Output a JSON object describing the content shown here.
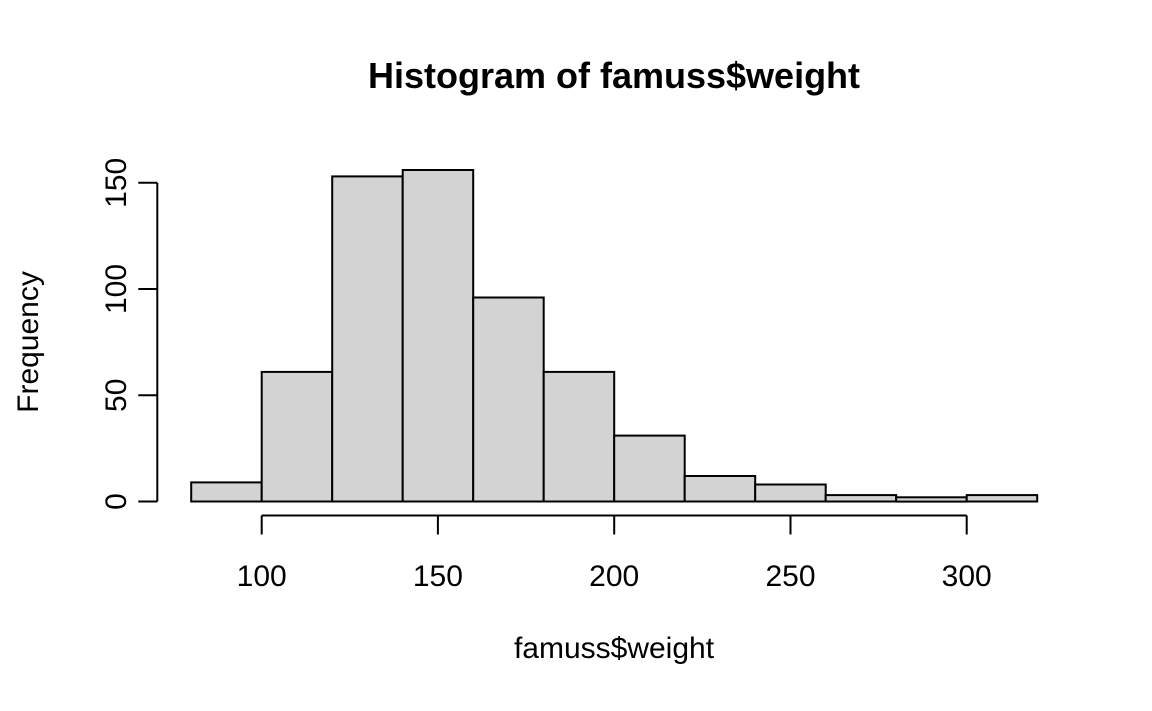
{
  "figure": {
    "background": "#ffffff"
  },
  "chart_data": {
    "type": "bar",
    "subtype": "histogram",
    "title": "Histogram of famuss$weight",
    "xlabel": "famuss$weight",
    "ylabel": "Frequency",
    "bin_edges": [
      80,
      100,
      120,
      140,
      160,
      180,
      200,
      220,
      240,
      260,
      280,
      300,
      320
    ],
    "counts": [
      9,
      61,
      153,
      156,
      96,
      61,
      31,
      12,
      8,
      3,
      2,
      3
    ],
    "total_n": 595,
    "x_ticks": [
      100,
      150,
      200,
      250,
      300
    ],
    "y_ticks": [
      0,
      50,
      100,
      150
    ],
    "xlim": [
      80,
      320
    ],
    "ylim": [
      0,
      160
    ],
    "grid": false,
    "legend_position": "none",
    "bar_fill": "#d3d3d3",
    "bar_border": "#000000",
    "axis_color": "#000000",
    "text_color": "#000000"
  }
}
